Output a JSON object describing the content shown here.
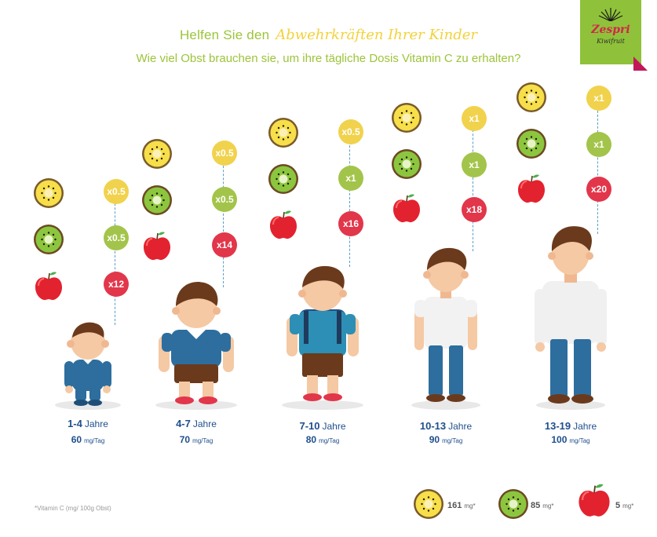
{
  "header": {
    "title_plain": "Helfen Sie den",
    "title_script": "Abwehrkräften Ihrer Kinder",
    "subtitle": "Wie viel Obst brauchen sie, um ihre tägliche Dosis Vitamin C zu erhalten?"
  },
  "logo": {
    "brand": "Zespri",
    "sub": "Kiwifruit"
  },
  "groups": [
    {
      "range": "1-4",
      "unit": "Jahre",
      "dose": "60",
      "dose_unit": "mg/Tag",
      "gold": "x0.5",
      "green": "x0.5",
      "apple": "x12"
    },
    {
      "range": "4-7",
      "unit": "Jahre",
      "dose": "70",
      "dose_unit": "mg/Tag",
      "gold": "x0.5",
      "green": "x0.5",
      "apple": "x14"
    },
    {
      "range": "7-10",
      "unit": "Jahre",
      "dose": "80",
      "dose_unit": "mg/Tag",
      "gold": "x0.5",
      "green": "x1",
      "apple": "x16"
    },
    {
      "range": "10-13",
      "unit": "Jahre",
      "dose": "90",
      "dose_unit": "mg/Tag",
      "gold": "x1",
      "green": "x1",
      "apple": "x18"
    },
    {
      "range": "13-19",
      "unit": "Jahre",
      "dose": "100",
      "dose_unit": "mg/Tag",
      "gold": "x1",
      "green": "x1",
      "apple": "x20"
    }
  ],
  "footnote": "*Vitamin C (mg/ 100g Obst)",
  "legend": [
    {
      "fruit": "gold-kiwi",
      "value": "161",
      "unit": "mg*"
    },
    {
      "fruit": "green-kiwi",
      "value": "85",
      "unit": "mg*"
    },
    {
      "fruit": "apple",
      "value": "5",
      "unit": "mg*"
    }
  ],
  "colors": {
    "green": "#9cc43a",
    "yellow": "#f1d24c",
    "red": "#e2364a",
    "navy": "#1f4f8c"
  }
}
